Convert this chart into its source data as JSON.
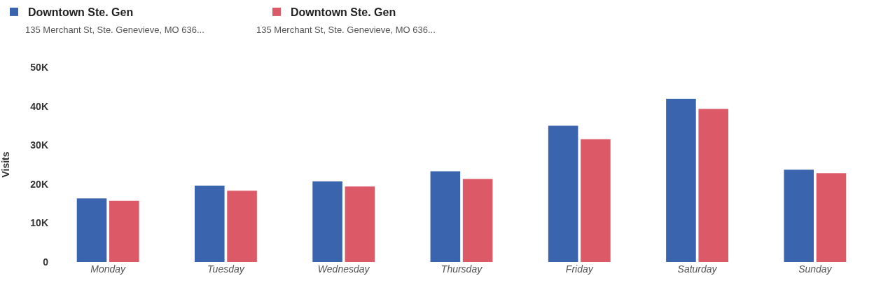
{
  "chart_data": {
    "type": "bar",
    "ylabel": "Visits",
    "categories": [
      "Monday",
      "Tuesday",
      "Wednesday",
      "Thursday",
      "Friday",
      "Saturday",
      "Sunday"
    ],
    "series": [
      {
        "name": "Downtown Ste. Gen",
        "color": "#3a64ad",
        "values": [
          16300,
          19600,
          20700,
          23300,
          35000,
          41900,
          23700
        ]
      },
      {
        "name": "Downtown Ste. Gen",
        "color": "#dc5a67",
        "values": [
          15700,
          18300,
          19400,
          21300,
          31500,
          39300,
          22800
        ]
      }
    ],
    "annotations": [
      "135 Merchant St, Ste. Genevieve, MO 636...",
      "135 Merchant St, Ste. Genevieve, MO 636..."
    ],
    "ylim": [
      0,
      50000
    ],
    "yticks": [
      {
        "value": 0,
        "label": "0"
      },
      {
        "value": 10000,
        "label": "10K"
      },
      {
        "value": 20000,
        "label": "20K"
      },
      {
        "value": 30000,
        "label": "30K"
      },
      {
        "value": 40000,
        "label": "40K"
      },
      {
        "value": 50000,
        "label": "50K"
      }
    ],
    "grid": false,
    "legend": "top left"
  }
}
